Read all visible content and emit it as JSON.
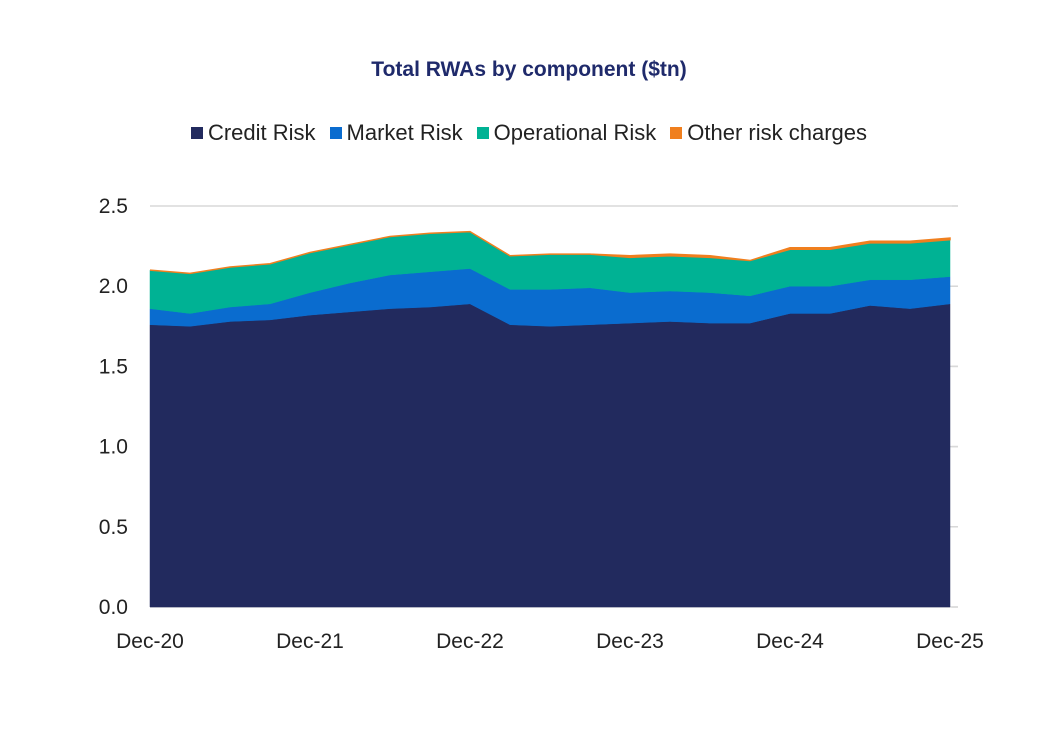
{
  "chart_data": {
    "type": "area",
    "stacked": true,
    "title": "Total RWAs by component ($tn)",
    "xlabel": "",
    "ylabel": "",
    "x": [
      "Dec-20",
      "Mar-21",
      "Jun-21",
      "Sep-21",
      "Dec-21",
      "Mar-22",
      "Jun-22",
      "Sep-22",
      "Dec-22",
      "Mar-23",
      "Jun-23",
      "Sep-23",
      "Dec-23",
      "Mar-24",
      "Jun-24",
      "Sep-24",
      "Dec-24",
      "Mar-25",
      "Jun-25",
      "Sep-25",
      "Dec-25"
    ],
    "xticks": [
      "Dec-20",
      "Dec-21",
      "Dec-22",
      "Dec-23",
      "Dec-24",
      "Dec-25"
    ],
    "ylim": [
      0,
      2.5
    ],
    "yticks": [
      "0.0",
      "0.5",
      "1.0",
      "1.5",
      "2.0",
      "2.5"
    ],
    "grid": "horizontal",
    "legend_position": "top",
    "series": [
      {
        "name": "Credit Risk",
        "color": "#222A5E",
        "values": [
          1.76,
          1.75,
          1.78,
          1.79,
          1.82,
          1.84,
          1.86,
          1.87,
          1.89,
          1.76,
          1.75,
          1.76,
          1.77,
          1.78,
          1.77,
          1.77,
          1.83,
          1.83,
          1.88,
          1.86,
          1.89
        ]
      },
      {
        "name": "Market Risk",
        "color": "#0A6CCF",
        "values": [
          0.1,
          0.08,
          0.09,
          0.1,
          0.14,
          0.18,
          0.21,
          0.22,
          0.22,
          0.22,
          0.23,
          0.23,
          0.19,
          0.19,
          0.19,
          0.17,
          0.17,
          0.17,
          0.16,
          0.18,
          0.17
        ]
      },
      {
        "name": "Operational Risk",
        "color": "#00B294",
        "values": [
          0.24,
          0.25,
          0.25,
          0.25,
          0.25,
          0.24,
          0.24,
          0.24,
          0.23,
          0.21,
          0.22,
          0.21,
          0.22,
          0.22,
          0.22,
          0.22,
          0.23,
          0.23,
          0.23,
          0.23,
          0.23
        ]
      },
      {
        "name": "Other risk charges",
        "color": "#F07F1E",
        "values": [
          0,
          0,
          0,
          0,
          0,
          0,
          0,
          0,
          0,
          0,
          0,
          0,
          0.01,
          0.01,
          0.01,
          0,
          0.01,
          0.01,
          0.01,
          0.01,
          0.01
        ]
      }
    ]
  }
}
